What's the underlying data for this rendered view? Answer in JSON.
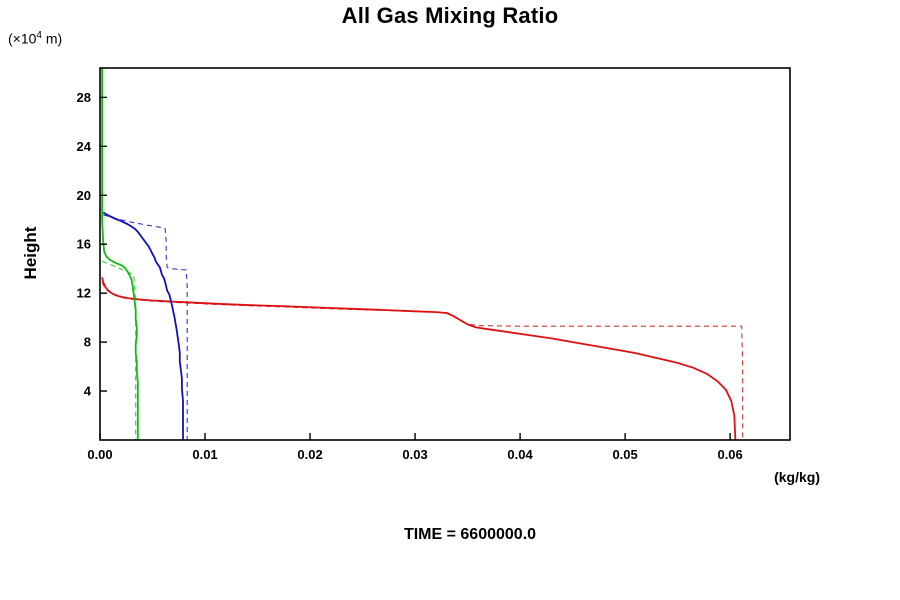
{
  "chart_data": {
    "type": "line",
    "title": "All Gas Mixing Ratio",
    "ylabel": "Height",
    "ylabel_unit_prefix": "(×10",
    "ylabel_unit_sup": "4",
    "ylabel_unit_suffix": " m)",
    "xlabel_unit": "(kg/kg)",
    "caption": "TIME = 6600000.0",
    "grid": false,
    "legend": "none",
    "xlim": [
      0,
      0.0657
    ],
    "ylim": [
      0,
      30.4
    ],
    "xticks": [
      {
        "v": 0.0,
        "label": "0.00"
      },
      {
        "v": 0.01,
        "label": "0.01"
      },
      {
        "v": 0.02,
        "label": "0.02"
      },
      {
        "v": 0.03,
        "label": "0.03"
      },
      {
        "v": 0.04,
        "label": "0.04"
      },
      {
        "v": 0.05,
        "label": "0.05"
      },
      {
        "v": 0.06,
        "label": "0.06"
      }
    ],
    "yticks": [
      {
        "v": 4,
        "label": "4"
      },
      {
        "v": 8,
        "label": "8"
      },
      {
        "v": 12,
        "label": "12"
      },
      {
        "v": 16,
        "label": "16"
      },
      {
        "v": 20,
        "label": "20"
      },
      {
        "v": 24,
        "label": "24"
      },
      {
        "v": 28,
        "label": "28"
      }
    ],
    "series": [
      {
        "name": "red-dashed",
        "color": "#cc3333",
        "width": 1.1,
        "dash": "5,4",
        "points": [
          [
            0.0002,
            12.9
          ],
          [
            0.0004,
            12.5
          ],
          [
            0.0007,
            12.2
          ],
          [
            0.0012,
            11.9
          ],
          [
            0.002,
            11.65
          ],
          [
            0.003,
            11.5
          ],
          [
            0.005,
            11.35
          ],
          [
            0.008,
            11.2
          ],
          [
            0.011,
            11.08
          ],
          [
            0.015,
            10.95
          ],
          [
            0.019,
            10.83
          ],
          [
            0.023,
            10.7
          ],
          [
            0.027,
            10.6
          ],
          [
            0.03,
            10.5
          ],
          [
            0.032,
            10.45
          ],
          [
            0.033,
            10.4
          ],
          [
            0.0337,
            10.15
          ],
          [
            0.0344,
            9.7
          ],
          [
            0.0352,
            9.45
          ],
          [
            0.0362,
            9.35
          ],
          [
            0.04,
            9.3
          ],
          [
            0.046,
            9.3
          ],
          [
            0.052,
            9.3
          ],
          [
            0.058,
            9.3
          ],
          [
            0.0611,
            9.3
          ],
          [
            0.0612,
            6.0
          ],
          [
            0.0612,
            0.0
          ]
        ]
      },
      {
        "name": "blue-dashed",
        "color": "#3333cc",
        "width": 1.1,
        "dash": "5,4",
        "points": [
          [
            0.0003,
            18.4
          ],
          [
            0.0015,
            18.1
          ],
          [
            0.003,
            17.8
          ],
          [
            0.0045,
            17.55
          ],
          [
            0.0056,
            17.4
          ],
          [
            0.0062,
            17.3
          ],
          [
            0.0063,
            16.2
          ],
          [
            0.0063,
            15.0
          ],
          [
            0.0064,
            14.1
          ],
          [
            0.0068,
            14.0
          ],
          [
            0.0075,
            13.95
          ],
          [
            0.0082,
            13.9
          ],
          [
            0.0083,
            12.5
          ],
          [
            0.0083,
            10.5
          ],
          [
            0.0083,
            0.0
          ]
        ]
      },
      {
        "name": "green-dashed",
        "color": "#33cc33",
        "width": 1.1,
        "dash": "5,4",
        "points": [
          [
            0.0002,
            14.6
          ],
          [
            0.0008,
            14.4
          ],
          [
            0.0015,
            14.15
          ],
          [
            0.0022,
            13.9
          ],
          [
            0.0028,
            13.65
          ],
          [
            0.0032,
            13.5
          ],
          [
            0.0033,
            12.5
          ],
          [
            0.0034,
            11.0
          ],
          [
            0.0034,
            8.0
          ],
          [
            0.0034,
            4.0
          ],
          [
            0.0034,
            0.0
          ]
        ]
      },
      {
        "name": "red-solid",
        "color": "#dd1111",
        "width": 1.8,
        "dash": null,
        "points": [
          [
            0.0002,
            13.3
          ],
          [
            0.0003,
            12.9
          ],
          [
            0.0005,
            12.5
          ],
          [
            0.0008,
            12.2
          ],
          [
            0.0012,
            11.95
          ],
          [
            0.0018,
            11.75
          ],
          [
            0.0026,
            11.6
          ],
          [
            0.0036,
            11.5
          ],
          [
            0.005,
            11.4
          ],
          [
            0.007,
            11.3
          ],
          [
            0.009,
            11.22
          ],
          [
            0.012,
            11.1
          ],
          [
            0.015,
            11.0
          ],
          [
            0.018,
            10.92
          ],
          [
            0.021,
            10.82
          ],
          [
            0.024,
            10.72
          ],
          [
            0.027,
            10.62
          ],
          [
            0.03,
            10.52
          ],
          [
            0.032,
            10.45
          ],
          [
            0.033,
            10.38
          ],
          [
            0.0336,
            10.15
          ],
          [
            0.0342,
            9.85
          ],
          [
            0.035,
            9.45
          ],
          [
            0.0358,
            9.2
          ],
          [
            0.037,
            9.05
          ],
          [
            0.039,
            8.8
          ],
          [
            0.041,
            8.55
          ],
          [
            0.043,
            8.3
          ],
          [
            0.045,
            8.0
          ],
          [
            0.047,
            7.7
          ],
          [
            0.049,
            7.4
          ],
          [
            0.051,
            7.1
          ],
          [
            0.053,
            6.7
          ],
          [
            0.055,
            6.3
          ],
          [
            0.0565,
            5.9
          ],
          [
            0.0578,
            5.4
          ],
          [
            0.0588,
            4.8
          ],
          [
            0.0596,
            4.1
          ],
          [
            0.0601,
            3.2
          ],
          [
            0.0604,
            2.0
          ],
          [
            0.0605,
            0.0
          ]
        ]
      },
      {
        "name": "blue-solid",
        "color": "#1111bb",
        "width": 1.8,
        "dash": null,
        "points": [
          [
            0.0003,
            18.6
          ],
          [
            0.0008,
            18.35
          ],
          [
            0.0014,
            18.1
          ],
          [
            0.002,
            17.9
          ],
          [
            0.0026,
            17.65
          ],
          [
            0.003,
            17.45
          ],
          [
            0.0034,
            17.2
          ],
          [
            0.0037,
            16.9
          ],
          [
            0.004,
            16.55
          ],
          [
            0.0043,
            16.2
          ],
          [
            0.0046,
            15.85
          ],
          [
            0.0048,
            15.55
          ],
          [
            0.005,
            15.2
          ],
          [
            0.0052,
            14.9
          ],
          [
            0.0053,
            14.6
          ],
          [
            0.0055,
            14.35
          ],
          [
            0.0057,
            14.1
          ],
          [
            0.0058,
            13.8
          ],
          [
            0.0059,
            13.5
          ],
          [
            0.0061,
            13.2
          ],
          [
            0.0062,
            12.9
          ],
          [
            0.0063,
            12.55
          ],
          [
            0.0064,
            12.2
          ],
          [
            0.0066,
            11.9
          ],
          [
            0.0067,
            11.55
          ],
          [
            0.0068,
            11.2
          ],
          [
            0.0069,
            10.8
          ],
          [
            0.007,
            10.4
          ],
          [
            0.0071,
            10.0
          ],
          [
            0.0072,
            9.5
          ],
          [
            0.0073,
            9.0
          ],
          [
            0.0074,
            8.4
          ],
          [
            0.0075,
            7.8
          ],
          [
            0.0076,
            7.1
          ],
          [
            0.0076,
            6.4
          ],
          [
            0.0077,
            5.7
          ],
          [
            0.0078,
            5.0
          ],
          [
            0.0078,
            4.2
          ],
          [
            0.0079,
            3.2
          ],
          [
            0.0079,
            0.0
          ]
        ]
      },
      {
        "name": "green-solid",
        "color": "#11bb11",
        "width": 1.8,
        "dash": null,
        "points": [
          [
            0.0002,
            30.4
          ],
          [
            0.0002,
            26.0
          ],
          [
            0.0002,
            22.0
          ],
          [
            0.0002,
            18.0
          ],
          [
            0.0003,
            16.2
          ],
          [
            0.0004,
            15.4
          ],
          [
            0.0006,
            15.0
          ],
          [
            0.0009,
            14.75
          ],
          [
            0.0013,
            14.55
          ],
          [
            0.0017,
            14.4
          ],
          [
            0.0021,
            14.25
          ],
          [
            0.0024,
            14.05
          ],
          [
            0.0026,
            13.8
          ],
          [
            0.0028,
            13.5
          ],
          [
            0.003,
            13.1
          ],
          [
            0.0031,
            12.6
          ],
          [
            0.0032,
            12.0
          ],
          [
            0.0033,
            11.3
          ],
          [
            0.0034,
            10.6
          ],
          [
            0.0034,
            9.9
          ],
          [
            0.0035,
            9.2
          ],
          [
            0.0035,
            8.5
          ],
          [
            0.0034,
            7.8
          ],
          [
            0.0034,
            7.1
          ],
          [
            0.0035,
            6.4
          ],
          [
            0.0035,
            5.6
          ],
          [
            0.0036,
            4.8
          ],
          [
            0.0036,
            3.8
          ],
          [
            0.0036,
            2.6
          ],
          [
            0.0036,
            0.0
          ]
        ]
      }
    ]
  }
}
